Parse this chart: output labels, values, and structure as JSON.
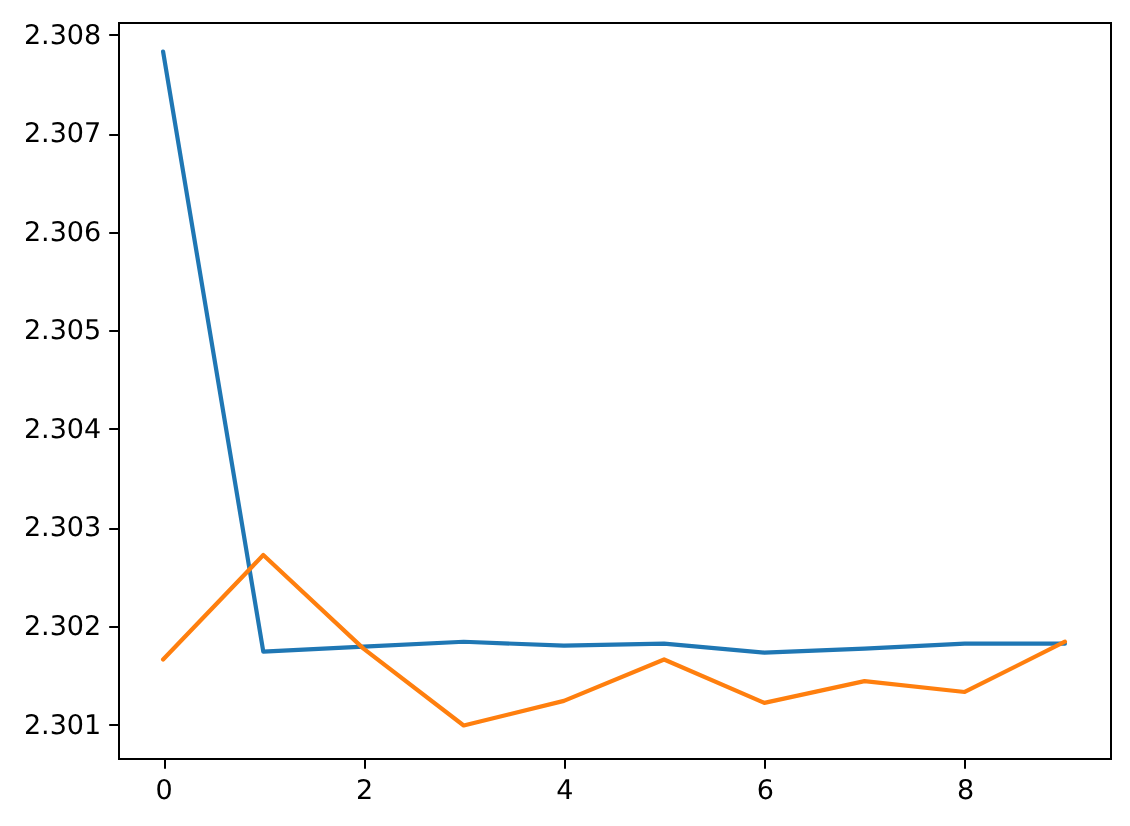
{
  "chart_data": {
    "type": "line",
    "x": [
      0,
      1,
      2,
      3,
      4,
      5,
      6,
      7,
      8,
      9
    ],
    "series": [
      {
        "color": "#1f77b4",
        "values": [
          2.30783,
          2.30174,
          2.30179,
          2.30184,
          2.3018,
          2.30182,
          2.30173,
          2.30177,
          2.30182,
          2.30182
        ]
      },
      {
        "color": "#ff7f0e",
        "values": [
          2.30166,
          2.30272,
          2.30177,
          2.30099,
          2.30124,
          2.30166,
          2.30122,
          2.30144,
          2.30133,
          2.30184
        ]
      }
    ],
    "xlim": [
      -0.45,
      9.45
    ],
    "ylim": [
      2.30066,
      2.30813
    ],
    "xticks": [
      0,
      2,
      4,
      6,
      8
    ],
    "yticks": [
      2.301,
      2.302,
      2.303,
      2.304,
      2.305,
      2.306,
      2.307,
      2.308
    ]
  }
}
